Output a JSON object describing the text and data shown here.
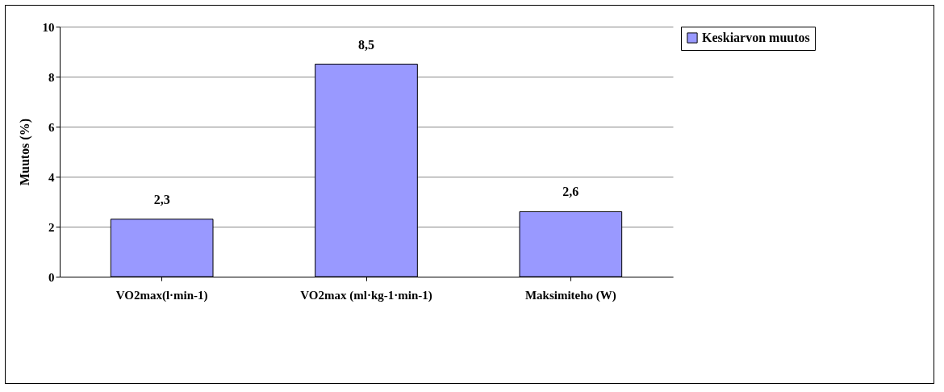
{
  "chart_data": {
    "type": "bar",
    "ylabel": "Muutos (%)",
    "categories": [
      "VO2max(l·min-1)",
      "VO2max (ml·kg-1·min-1)",
      "Maksimiteho (W)"
    ],
    "series": [
      {
        "name": "Keskiarvon muutos",
        "color": "#9999ff",
        "values": [
          2.3,
          8.5,
          2.6
        ],
        "value_labels": [
          "2,3",
          "8,5",
          "2,6"
        ]
      }
    ],
    "ylim": [
      0,
      10
    ],
    "yticks": [
      0,
      2,
      4,
      6,
      8,
      10
    ],
    "grid": "y",
    "legend": "right"
  }
}
